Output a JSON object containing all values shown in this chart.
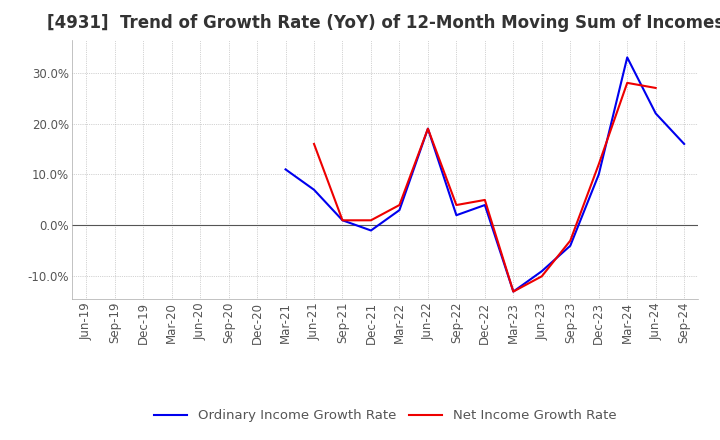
{
  "title": "[4931]  Trend of Growth Rate (YoY) of 12-Month Moving Sum of Incomes",
  "title_fontsize": 12,
  "tick_fontsize": 8.5,
  "legend_fontsize": 9.5,
  "ylim": [
    -0.145,
    0.365
  ],
  "yticks": [
    -0.1,
    0.0,
    0.1,
    0.2,
    0.3
  ],
  "ytick_labels": [
    "-10.0%",
    "0.0%",
    "10.0%",
    "20.0%",
    "30.0%"
  ],
  "background_color": "#ffffff",
  "grid_color": "#aaaaaa",
  "ordinary_color": "#0000ee",
  "net_color": "#ee0000",
  "ordinary_label": "Ordinary Income Growth Rate",
  "net_label": "Net Income Growth Rate",
  "dates": [
    "Jun-19",
    "Sep-19",
    "Dec-19",
    "Mar-20",
    "Jun-20",
    "Sep-20",
    "Dec-20",
    "Mar-21",
    "Jun-21",
    "Sep-21",
    "Dec-21",
    "Mar-22",
    "Jun-22",
    "Sep-22",
    "Dec-22",
    "Mar-23",
    "Jun-23",
    "Sep-23",
    "Dec-23",
    "Mar-24",
    "Jun-24",
    "Sep-24"
  ],
  "ordinary": [
    null,
    null,
    null,
    null,
    null,
    null,
    null,
    0.11,
    0.07,
    0.01,
    -0.01,
    0.03,
    0.19,
    0.02,
    0.04,
    -0.13,
    -0.09,
    -0.04,
    0.1,
    0.33,
    0.22,
    0.16
  ],
  "net": [
    null,
    null,
    null,
    null,
    null,
    null,
    null,
    null,
    0.16,
    0.01,
    0.01,
    0.04,
    0.19,
    0.04,
    0.05,
    -0.13,
    -0.1,
    -0.03,
    0.12,
    0.28,
    0.27,
    null
  ]
}
